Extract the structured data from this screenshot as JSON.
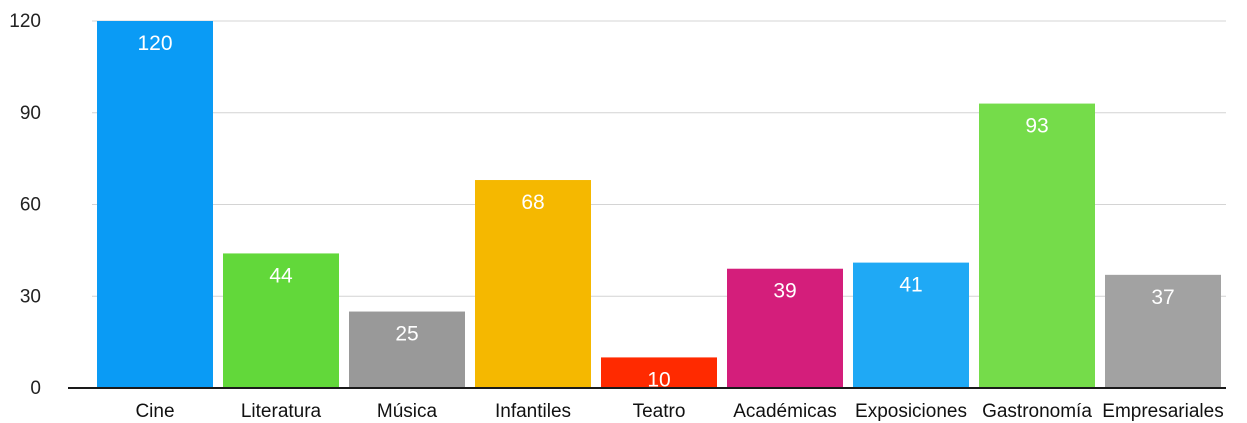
{
  "chart_data": {
    "type": "bar",
    "title": "",
    "xlabel": "",
    "ylabel": "",
    "categories": [
      "Cine",
      "Literatura",
      "Música",
      "Infantiles",
      "Teatro",
      "Académicas",
      "Exposiciones",
      "Gastronomía",
      "Empresariales"
    ],
    "values": [
      120,
      44,
      25,
      68,
      10,
      39,
      41,
      93,
      37
    ],
    "colors": [
      "#0a9bf5",
      "#62d83a",
      "#999999",
      "#f5b800",
      "#ff2a00",
      "#d41e7b",
      "#1fa9f5",
      "#75dc4a",
      "#a2a2a2"
    ],
    "ylim": [
      0,
      120
    ],
    "yticks": [
      "0",
      "30",
      "60",
      "90",
      "120"
    ],
    "ytick_values": [
      0,
      30,
      60,
      90,
      120
    ],
    "grid": true,
    "data_labels": true,
    "legend": "none"
  }
}
